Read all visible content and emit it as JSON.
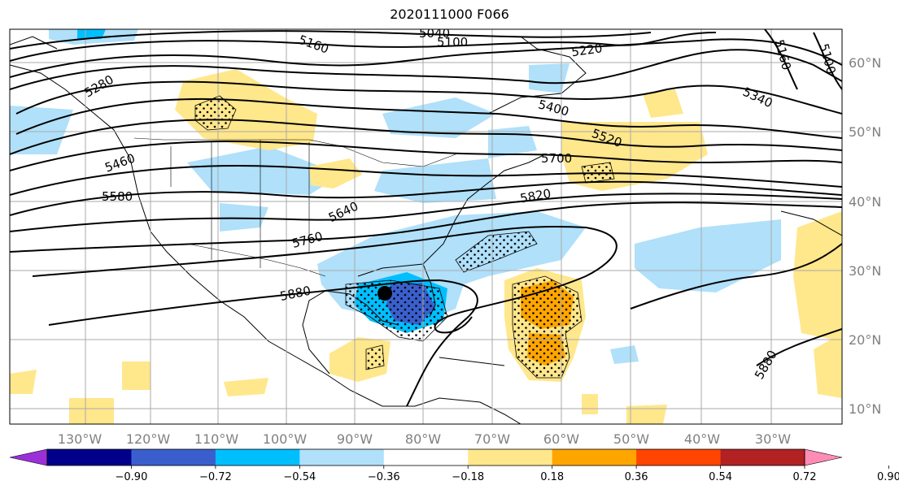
{
  "title": "2020111000 F066",
  "map": {
    "lon_labels": [
      "130°W",
      "120°W",
      "110°W",
      "100°W",
      "90°W",
      "80°W",
      "70°W",
      "60°W",
      "50°W",
      "40°W",
      "30°W"
    ],
    "lat_labels": [
      "60°N",
      "50°N",
      "40°N",
      "30°N",
      "20°N",
      "10°N"
    ],
    "contour_labels": [
      "5040",
      "5100",
      "5160",
      "5220",
      "5280",
      "5340",
      "5400",
      "5460",
      "5520",
      "5580",
      "5640",
      "5700",
      "5760",
      "5820",
      "5880",
      "5160",
      "5100",
      "5880"
    ],
    "marker": "storm-center"
  },
  "colorbar": {
    "ticks": [
      "−0.90",
      "−0.72",
      "−0.54",
      "−0.36",
      "−0.18",
      "0.18",
      "0.36",
      "0.54",
      "0.72",
      "0.90"
    ],
    "colors": [
      "#9b30d9",
      "#00008b",
      "#3a5fcd",
      "#00bfff",
      "#b0e0fa",
      "#ffffff",
      "#ffe78c",
      "#ffa500",
      "#ff4500",
      "#b22222",
      "#ff8cb4"
    ]
  }
}
